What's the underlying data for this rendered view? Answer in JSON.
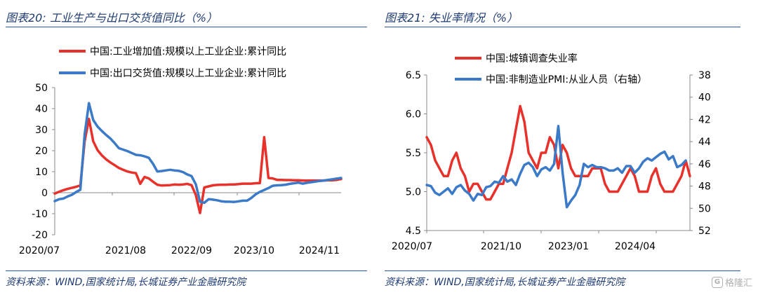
{
  "left": {
    "title": "图表20:  工业生产与出口交货值同比（%）",
    "source": "资料来源：WIND,国家统计局,长城证券产业金融研究院",
    "chart_data": {
      "type": "line",
      "y_ticks": [
        "50",
        "40",
        "30",
        "20",
        "10",
        "0",
        "-10",
        "-20"
      ],
      "ylim": [
        -20,
        50
      ],
      "x_ticks": [
        "2020/07",
        "2021/08",
        "2022/09",
        "2023/10",
        "2024/11"
      ],
      "colors": [
        "#e8312a",
        "#3a7ac8"
      ],
      "series": [
        {
          "name": "中国:工业增加值:规模以上工业企业:累计同比",
          "values": [
            -0.4,
            0.4,
            1.2,
            1.8,
            2.3,
            2.8,
            3.5,
            24.5,
            35.1,
            24.5,
            20.3,
            17.8,
            15.9,
            14.4,
            13.1,
            11.8,
            10.9,
            10.1,
            9.6,
            9.3,
            4.2,
            7.5,
            6.8,
            5.2,
            3.8,
            3.4,
            3.5,
            3.6,
            3.9,
            3.8,
            3.9,
            4.2,
            3.6,
            -1.1,
            -9.7,
            2.5,
            3.0,
            3.5,
            3.7,
            3.8,
            3.8,
            3.9,
            3.9,
            4.1,
            4.3,
            4.3,
            4.3,
            4.5,
            4.6,
            26.4,
            7.0,
            6.8,
            6.1,
            6.1,
            6.0,
            6.0,
            5.9,
            5.9,
            5.8,
            5.8,
            5.8,
            5.8,
            5.8,
            5.8,
            5.9,
            5.9,
            6.1,
            6.5
          ]
        },
        {
          "name": "中国:出口交货值:规模以上工业企业:累计同比",
          "values": [
            -4.0,
            -3.1,
            -2.8,
            -1.8,
            -1.0,
            0.3,
            1.4,
            27.8,
            42.6,
            34.6,
            31.5,
            29.4,
            27.5,
            25.8,
            23.6,
            21.2,
            20.5,
            19.8,
            18.9,
            18.0,
            17.8,
            17.3,
            16.6,
            13.7,
            10.1,
            10.3,
            10.6,
            10.9,
            10.6,
            10.4,
            9.8,
            8.7,
            7.9,
            4.0,
            -4.3,
            -4.8,
            -3.1,
            -3.3,
            -3.6,
            -4.1,
            -4.3,
            -4.3,
            -4.4,
            -4.1,
            -3.8,
            -3.8,
            -2.5,
            -0.8,
            0.4,
            1.3,
            2.2,
            3.3,
            3.5,
            3.6,
            3.8,
            4.2,
            4.5,
            4.8,
            4.3,
            4.7,
            5.0,
            5.3,
            5.6,
            5.8,
            6.1,
            6.4,
            6.7,
            7.0
          ]
        }
      ]
    }
  },
  "right": {
    "title": "图表21:  失业率情况（%）",
    "source": "资料来源：WIND,国家统计局,长城证券产业金融研究院",
    "chart_data": {
      "type": "line",
      "y_left_ticks": [
        "6.5",
        "6.0",
        "5.5",
        "5.0",
        "4.5"
      ],
      "ylim_left": [
        4.5,
        6.5
      ],
      "y_right_ticks": [
        "38",
        "40",
        "42",
        "44",
        "46",
        "48",
        "50",
        "52"
      ],
      "ylim_right": [
        38,
        52
      ],
      "y_right_inverted": true,
      "x_ticks": [
        "2020/07",
        "2021/10",
        "2023/01",
        "2024/04"
      ],
      "colors": [
        "#e8312a",
        "#3a7ac8"
      ],
      "series": [
        {
          "name": "中国:城镇调查失业率",
          "axis": "left",
          "values": [
            5.7,
            5.6,
            5.4,
            5.3,
            5.2,
            5.2,
            5.4,
            5.5,
            5.3,
            5.2,
            5.0,
            5.1,
            5.1,
            5.0,
            4.9,
            4.9,
            5.0,
            5.1,
            5.1,
            5.3,
            5.5,
            5.8,
            6.1,
            5.9,
            5.5,
            5.4,
            5.3,
            5.5,
            5.5,
            5.7,
            5.6,
            5.3,
            5.6,
            5.5,
            5.3,
            5.2,
            5.2,
            5.2,
            5.2,
            5.3,
            5.3,
            5.3,
            5.1,
            5.0,
            5.0,
            5.0,
            5.1,
            5.2,
            5.3,
            5.2,
            5.0,
            5.0,
            5.0,
            5.2,
            5.3,
            5.1,
            5.0,
            5.0,
            5.0,
            5.1,
            5.2,
            5.4,
            5.2
          ]
        },
        {
          "name": "中国:非制造业PMI:从业人员（右轴）",
          "axis": "right",
          "values": [
            47.9,
            48.0,
            48.6,
            48.8,
            48.5,
            48.2,
            48.7,
            48.1,
            47.9,
            48.4,
            48.7,
            49.3,
            48.7,
            48.8,
            48.1,
            48.0,
            47.6,
            47.7,
            47.1,
            47.6,
            47.4,
            47.9,
            46.9,
            46.1,
            45.9,
            46.3,
            47.1,
            46.5,
            46.3,
            46.6,
            46.0,
            42.6,
            46.8,
            49.9,
            49.3,
            48.8,
            47.9,
            46.0,
            46.3,
            46.1,
            46.3,
            46.3,
            46.4,
            46.6,
            46.6,
            46.4,
            46.8,
            46.2,
            46.2,
            46.8,
            46.4,
            45.8,
            45.5,
            45.7,
            45.4,
            45.1,
            44.9,
            45.6,
            45.3,
            46.3,
            46.1,
            45.7
          ]
        }
      ]
    }
  },
  "watermark": {
    "icon_glyph": "G",
    "label": "格隆汇"
  }
}
